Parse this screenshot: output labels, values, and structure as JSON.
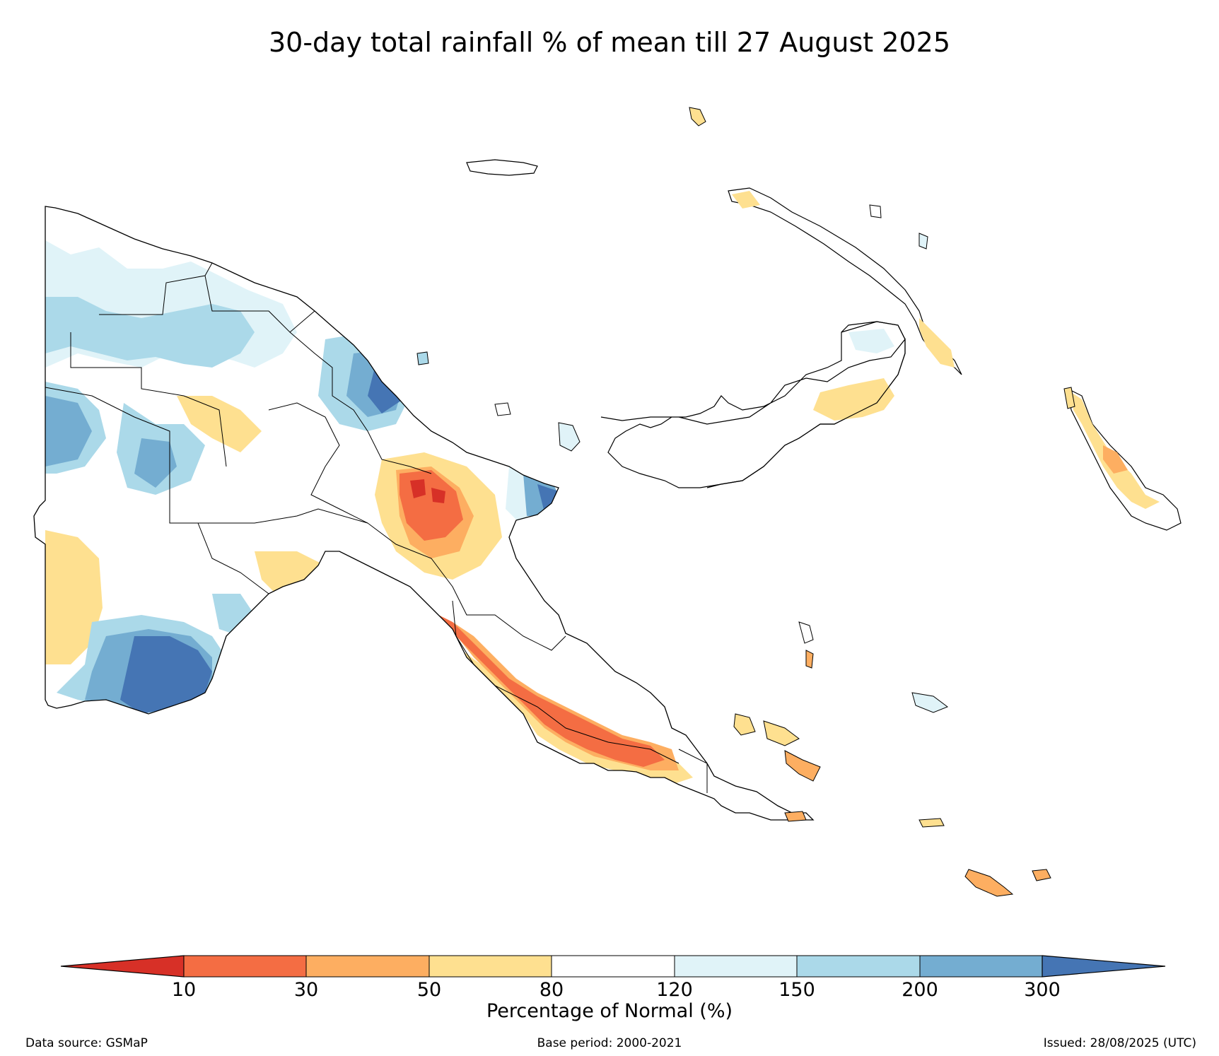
{
  "title": "30-day total rainfall % of mean till 27 August 2025",
  "legend": {
    "label": "Percentage of Normal (%)",
    "ticks": [
      "10",
      "30",
      "50",
      "80",
      "120",
      "150",
      "200",
      "300"
    ],
    "colors": {
      "under_10": "#d73027",
      "10_30": "#f46d43",
      "30_50": "#fdae61",
      "50_80": "#fee090",
      "80_120": "#ffffff",
      "120_150": "#e0f3f8",
      "150_200": "#abd9e9",
      "200_300": "#74add1",
      "over_300": "#4575b4"
    }
  },
  "footer": {
    "source": "Data source: GSMaP",
    "base_period": "Base period: 2000-2021",
    "issued": "Issued: 28/08/2025 (UTC)"
  }
}
